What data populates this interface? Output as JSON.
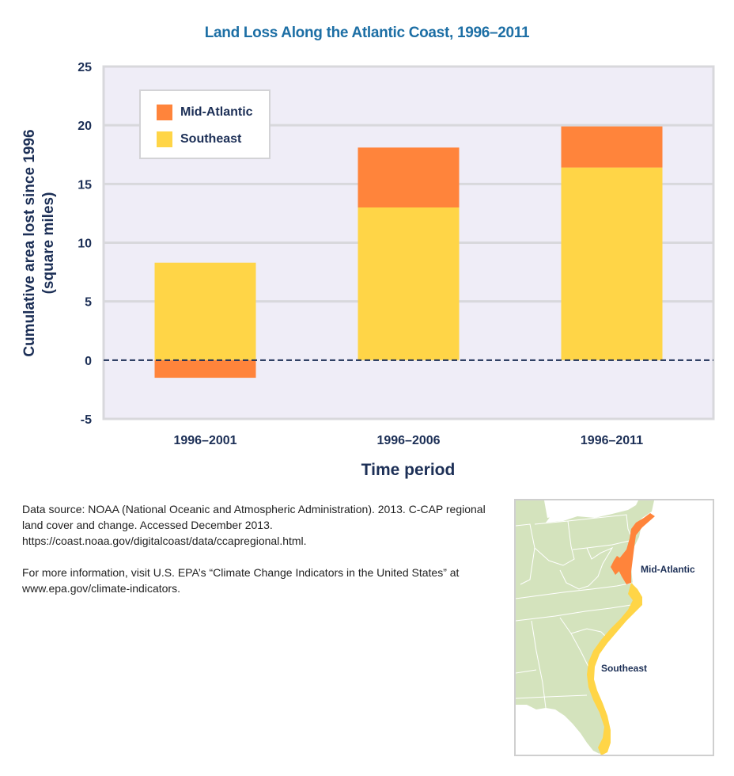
{
  "chart_data": {
    "type": "bar",
    "stacked": true,
    "title": "Land Loss Along the Atlantic Coast, 1996–2011",
    "xlabel": "Time period",
    "ylabel": "Cumulative area lost since 1996 (square miles)",
    "ylabel_lines": [
      "Cumulative area lost since 1996",
      "(square miles)"
    ],
    "categories": [
      "1996–2001",
      "1996–2006",
      "1996–2011"
    ],
    "series": [
      {
        "name": "Southeast",
        "color": "#ffd547",
        "values": [
          8.3,
          13.0,
          16.4
        ]
      },
      {
        "name": "Mid-Atlantic",
        "color": "#ff843b",
        "values": [
          -1.5,
          5.1,
          3.5
        ]
      }
    ],
    "legend_order": [
      "Mid-Atlantic",
      "Southeast"
    ],
    "legend_position": "top-left",
    "ylim": [
      -5,
      25
    ],
    "yticks": [
      -5,
      0,
      5,
      10,
      15,
      20,
      25
    ],
    "ytick_labels": [
      "-5",
      "0",
      "5",
      "10",
      "15",
      "20",
      "25"
    ],
    "grid": true,
    "zero_line": "dashed"
  },
  "colors": {
    "title": "#1d6fa5",
    "text": "#1c2f56",
    "plot_background": "#efedf7",
    "grid": "#d8d8dc",
    "mid_atlantic": "#ff843b",
    "southeast": "#ffd547",
    "map_land": "#d4e3bd"
  },
  "notes": {
    "source": "Data source: NOAA (National Oceanic and Atmospheric Administration). 2013. C-CAP regional land cover and change. Accessed December 2013. https://coast.noaa.gov/digitalcoast/data/ccapregional.html.",
    "more_info": "For more information, visit U.S. EPA’s “Climate Change Indicators in the United States” at www.epa.gov/climate-indicators."
  },
  "map": {
    "labels": {
      "mid_atlantic": "Mid-Atlantic",
      "southeast": "Southeast"
    }
  }
}
